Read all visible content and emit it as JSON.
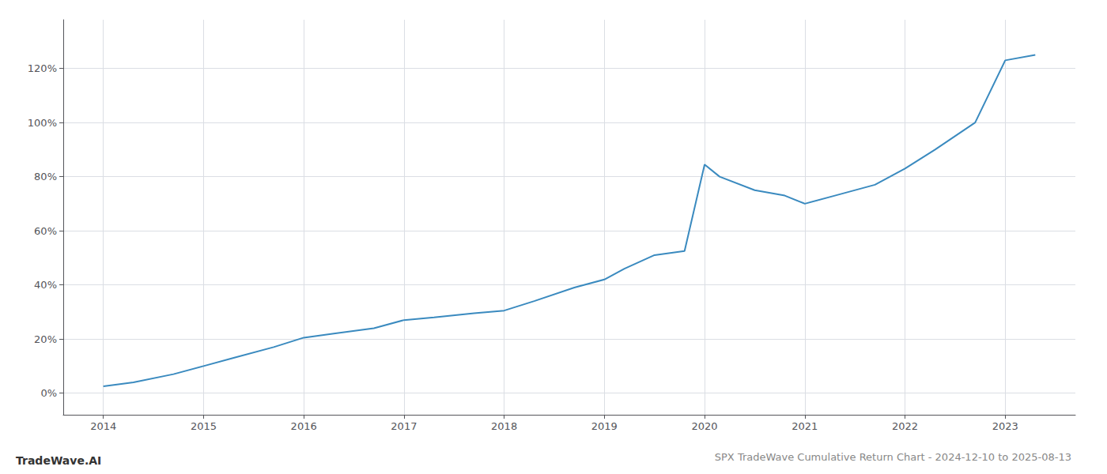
{
  "chart_data": {
    "type": "line",
    "title": "SPX TradeWave Cumulative Return Chart - 2024-12-10 to 2025-08-13",
    "annotations": [
      "TradeWave.AI"
    ],
    "x": [
      2014.0,
      2014.3,
      2014.7,
      2015.0,
      2015.3,
      2015.7,
      2016.0,
      2016.3,
      2016.7,
      2017.0,
      2017.3,
      2017.7,
      2018.0,
      2018.3,
      2018.7,
      2019.0,
      2019.2,
      2019.5,
      2019.8,
      2020.0,
      2020.15,
      2020.5,
      2020.8,
      2021.0,
      2021.3,
      2021.7,
      2022.0,
      2022.3,
      2022.7,
      2023.0,
      2023.3
    ],
    "values": [
      2.5,
      4.0,
      7.0,
      10.0,
      13.0,
      17.0,
      20.5,
      22.0,
      24.0,
      27.0,
      28.0,
      29.5,
      30.5,
      34.0,
      39.0,
      42.0,
      46.0,
      51.0,
      52.5,
      84.5,
      80.0,
      75.0,
      73.0,
      70.0,
      73.0,
      77.0,
      83.0,
      90.0,
      100.0,
      123.0,
      125.0
    ],
    "color": "#3a8abf",
    "xlim": [
      2013.6,
      2023.7
    ],
    "xticks": [
      2014,
      2015,
      2016,
      2017,
      2018,
      2019,
      2020,
      2021,
      2022,
      2023
    ],
    "ylim": [
      -8,
      138
    ],
    "yticks": [
      {
        "value": 0,
        "label": "0%"
      },
      {
        "value": 20,
        "label": "20%"
      },
      {
        "value": 40,
        "label": "40%"
      },
      {
        "value": 60,
        "label": "60%"
      },
      {
        "value": 80,
        "label": "80%"
      },
      {
        "value": 100,
        "label": "100%"
      },
      {
        "value": 120,
        "label": "120%"
      }
    ],
    "grid": true
  }
}
